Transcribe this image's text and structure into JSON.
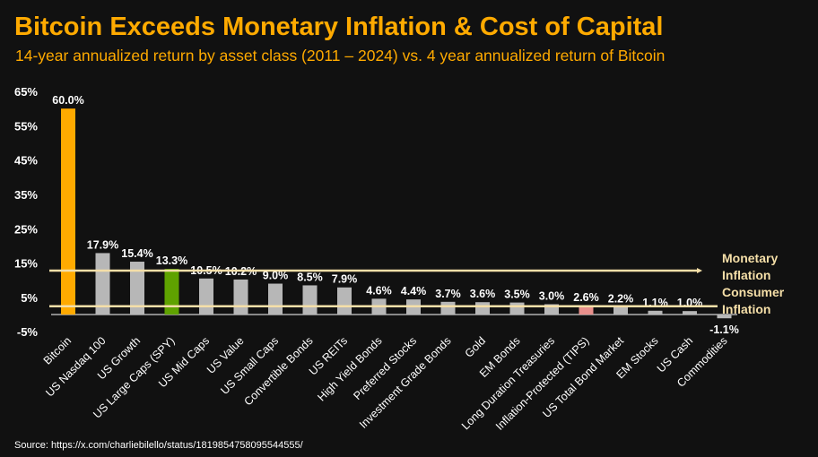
{
  "chart_data": {
    "type": "bar",
    "title": "Bitcoin Exceeds Monetary Inflation & Cost of Capital",
    "subtitle": "14-year annualized return by asset class (2011 – 2024) vs. 4 year annualized return of Bitcoin",
    "categories": [
      "Bitcoin",
      "US Nasdaq 100",
      "US Growth",
      "US Large Caps (SPY)",
      "US Mid Caps",
      "US Value",
      "US Small Caps",
      "Convertible Bonds",
      "US REITs",
      "High Yield Bonds",
      "Preferred Stocks",
      "Investment Grade Bonds",
      "Gold",
      "EM Bonds",
      "Long Duration Treasuries",
      "Inflation-Protected (TIPS)",
      "US Total Bond Market",
      "EM Stocks",
      "US Cash",
      "Commodities"
    ],
    "values": [
      60.0,
      17.9,
      15.4,
      13.3,
      10.5,
      10.2,
      9.0,
      8.5,
      7.9,
      4.6,
      4.4,
      3.7,
      3.6,
      3.5,
      3.0,
      2.6,
      2.2,
      1.1,
      1.0,
      -1.1
    ],
    "data_labels": [
      "60.0%",
      "17.9%",
      "15.4%",
      "13.3%",
      "10.5%",
      "10.2%",
      "9.0%",
      "8.5%",
      "7.9%",
      "4.6%",
      "4.4%",
      "3.7%",
      "3.6%",
      "3.5%",
      "3.0%",
      "2.6%",
      "2.2%",
      "1.1%",
      "1.0%",
      "-1.1%"
    ],
    "colors": [
      "#FFAA00",
      "#B7B7B7",
      "#B7B7B7",
      "#5FA200",
      "#B7B7B7",
      "#B7B7B7",
      "#B7B7B7",
      "#B7B7B7",
      "#B7B7B7",
      "#B7B7B7",
      "#B7B7B7",
      "#B7B7B7",
      "#B7B7B7",
      "#B7B7B7",
      "#B7B7B7",
      "#E8908C",
      "#B7B7B7",
      "#B7B7B7",
      "#B7B7B7",
      "#B7B7B7"
    ],
    "yticks": [
      "65%",
      "55%",
      "45%",
      "35%",
      "25%",
      "15%",
      "5%",
      "-5%"
    ],
    "ytick_values": [
      65,
      55,
      45,
      35,
      25,
      15,
      5,
      -5
    ],
    "ylim": [
      -5,
      65
    ],
    "reference_lines": [
      {
        "name": "Monetary Inflation",
        "value": 12.8,
        "label_lines": [
          "Monetary",
          "Inflation"
        ],
        "color": "#F5DFA8"
      },
      {
        "name": "Consumer Inflation",
        "value": 2.4,
        "label_lines": [
          "Consumer",
          "Inflation"
        ],
        "color": "#F5DFA8"
      }
    ],
    "grid": false,
    "legend": "none"
  },
  "source": "Source: https://x.com/charliebilello/status/1819854758095544555/"
}
